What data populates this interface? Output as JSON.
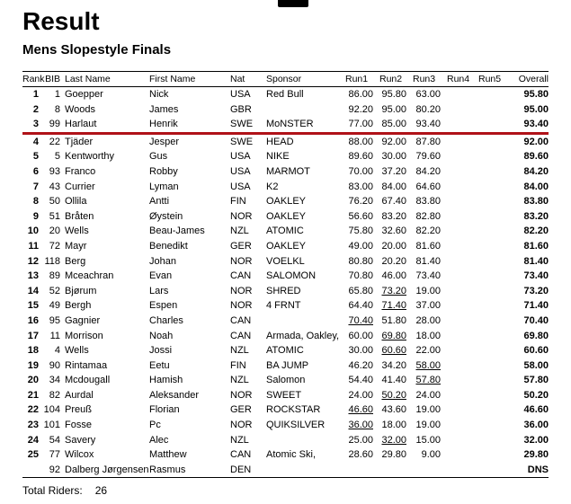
{
  "page": {
    "title": "Result",
    "subtitle": "Mens Slopestyle Finals",
    "footer": {
      "label": "Total Riders:",
      "value": "26"
    }
  },
  "accent": {
    "cut_line_color": "#b01218"
  },
  "table": {
    "columns": [
      "Rank",
      "BIB",
      "Last Name",
      "First Name",
      "Nat",
      "Sponsor",
      "Run1",
      "Run2",
      "Run3",
      "Run4",
      "Run5",
      "Overall"
    ],
    "rows": [
      {
        "rank": "1",
        "bib": "1",
        "last": "Goepper",
        "first": "Nick",
        "nat": "USA",
        "sponsor": "Red Bull",
        "run1": "86.00",
        "run2": "95.80",
        "run3": "63.00",
        "run4": "",
        "run5": "",
        "overall": "95.80"
      },
      {
        "rank": "2",
        "bib": "8",
        "last": "Woods",
        "first": "James",
        "nat": "GBR",
        "sponsor": "",
        "run1": "92.20",
        "run2": "95.00",
        "run3": "80.20",
        "run4": "",
        "run5": "",
        "overall": "95.00"
      },
      {
        "rank": "3",
        "bib": "99",
        "last": "Harlaut",
        "first": "Henrik",
        "nat": "SWE",
        "sponsor": "MoNSTER",
        "run1": "77.00",
        "run2": "85.00",
        "run3": "93.40",
        "run4": "",
        "run5": "",
        "overall": "93.40",
        "cut_after": true
      },
      {
        "rank": "4",
        "bib": "22",
        "last": "Tjäder",
        "first": "Jesper",
        "nat": "SWE",
        "sponsor": "HEAD",
        "run1": "88.00",
        "run2": "92.00",
        "run3": "87.80",
        "run4": "",
        "run5": "",
        "overall": "92.00"
      },
      {
        "rank": "5",
        "bib": "5",
        "last": "Kentworthy",
        "first": "Gus",
        "nat": "USA",
        "sponsor": "NIKE",
        "run1": "89.60",
        "run2": "30.00",
        "run3": "79.60",
        "run4": "",
        "run5": "",
        "overall": "89.60"
      },
      {
        "rank": "6",
        "bib": "93",
        "last": "Franco",
        "first": "Robby",
        "nat": "USA",
        "sponsor": "MARMOT",
        "run1": "70.00",
        "run2": "37.20",
        "run3": "84.20",
        "run4": "",
        "run5": "",
        "overall": "84.20"
      },
      {
        "rank": "7",
        "bib": "43",
        "last": "Currier",
        "first": "Lyman",
        "nat": "USA",
        "sponsor": "K2",
        "run1": "83.00",
        "run2": "84.00",
        "run3": "64.60",
        "run4": "",
        "run5": "",
        "overall": "84.00"
      },
      {
        "rank": "8",
        "bib": "50",
        "last": "Ollila",
        "first": "Antti",
        "nat": "FIN",
        "sponsor": "OAKLEY",
        "run1": "76.20",
        "run2": "67.40",
        "run3": "83.80",
        "run4": "",
        "run5": "",
        "overall": "83.80"
      },
      {
        "rank": "9",
        "bib": "51",
        "last": "Bråten",
        "first": "Øystein",
        "nat": "NOR",
        "sponsor": "OAKLEY",
        "run1": "56.60",
        "run2": "83.20",
        "run3": "82.80",
        "run4": "",
        "run5": "",
        "overall": "83.20"
      },
      {
        "rank": "10",
        "bib": "20",
        "last": "Wells",
        "first": "Beau-James",
        "nat": "NZL",
        "sponsor": "ATOMIC",
        "run1": "75.80",
        "run2": "32.60",
        "run3": "82.20",
        "run4": "",
        "run5": "",
        "overall": "82.20"
      },
      {
        "rank": "11",
        "bib": "72",
        "last": "Mayr",
        "first": "Benedikt",
        "nat": "GER",
        "sponsor": "OAKLEY",
        "run1": "49.00",
        "run2": "20.00",
        "run3": "81.60",
        "run4": "",
        "run5": "",
        "overall": "81.60"
      },
      {
        "rank": "12",
        "bib": "118",
        "last": "Berg",
        "first": "Johan",
        "nat": "NOR",
        "sponsor": "VOELKL",
        "run1": "80.80",
        "run2": "20.20",
        "run3": "81.40",
        "run4": "",
        "run5": "",
        "overall": "81.40"
      },
      {
        "rank": "13",
        "bib": "89",
        "last": "Mceachran",
        "first": "Evan",
        "nat": "CAN",
        "sponsor": "SALOMON",
        "run1": "70.80",
        "run2": "46.00",
        "run3": "73.40",
        "run4": "",
        "run5": "",
        "overall": "73.40"
      },
      {
        "rank": "14",
        "bib": "52",
        "last": "Bjørum",
        "first": "Lars",
        "nat": "NOR",
        "sponsor": "SHRED",
        "run1": "65.80",
        "run2": "73.20",
        "run3": "19.00",
        "run4": "",
        "run5": "",
        "overall": "73.20",
        "underline_run": 2
      },
      {
        "rank": "15",
        "bib": "49",
        "last": "Bergh",
        "first": "Espen",
        "nat": "NOR",
        "sponsor": "4 FRNT",
        "run1": "64.40",
        "run2": "71.40",
        "run3": "37.00",
        "run4": "",
        "run5": "",
        "overall": "71.40",
        "underline_run": 2
      },
      {
        "rank": "16",
        "bib": "95",
        "last": "Gagnier",
        "first": "Charles",
        "nat": "CAN",
        "sponsor": "",
        "run1": "70.40",
        "run2": "51.80",
        "run3": "28.00",
        "run4": "",
        "run5": "",
        "overall": "70.40",
        "underline_run": 1
      },
      {
        "rank": "17",
        "bib": "11",
        "last": "Morrison",
        "first": "Noah",
        "nat": "CAN",
        "sponsor": "Armada, Oakley,",
        "run1": "60.00",
        "run2": "69.80",
        "run3": "18.00",
        "run4": "",
        "run5": "",
        "overall": "69.80",
        "underline_run": 2
      },
      {
        "rank": "18",
        "bib": "4",
        "last": "Wells",
        "first": "Jossi",
        "nat": "NZL",
        "sponsor": "ATOMIC",
        "run1": "30.00",
        "run2": "60.60",
        "run3": "22.00",
        "run4": "",
        "run5": "",
        "overall": "60.60",
        "underline_run": 2
      },
      {
        "rank": "19",
        "bib": "90",
        "last": "Rintamaa",
        "first": "Eetu",
        "nat": "FIN",
        "sponsor": "BA JUMP",
        "run1": "46.20",
        "run2": "34.20",
        "run3": "58.00",
        "run4": "",
        "run5": "",
        "overall": "58.00",
        "underline_run": 3
      },
      {
        "rank": "20",
        "bib": "34",
        "last": "Mcdougall",
        "first": "Hamish",
        "nat": "NZL",
        "sponsor": "Salomon",
        "run1": "54.40",
        "run2": "41.40",
        "run3": "57.80",
        "run4": "",
        "run5": "",
        "overall": "57.80",
        "underline_run": 3
      },
      {
        "rank": "21",
        "bib": "82",
        "last": "Aurdal",
        "first": "Aleksander",
        "nat": "NOR",
        "sponsor": "SWEET",
        "run1": "24.00",
        "run2": "50.20",
        "run3": "24.00",
        "run4": "",
        "run5": "",
        "overall": "50.20",
        "underline_run": 2
      },
      {
        "rank": "22",
        "bib": "104",
        "last": "Preuß",
        "first": "Florian",
        "nat": "GER",
        "sponsor": "ROCKSTAR",
        "run1": "46.60",
        "run2": "43.60",
        "run3": "19.00",
        "run4": "",
        "run5": "",
        "overall": "46.60",
        "underline_run": 1
      },
      {
        "rank": "23",
        "bib": "101",
        "last": "Fosse",
        "first": "Pc",
        "nat": "NOR",
        "sponsor": "QUIKSILVER",
        "run1": "36.00",
        "run2": "18.00",
        "run3": "19.00",
        "run4": "",
        "run5": "",
        "overall": "36.00",
        "underline_run": 1
      },
      {
        "rank": "24",
        "bib": "54",
        "last": "Savery",
        "first": "Alec",
        "nat": "NZL",
        "sponsor": "",
        "run1": "25.00",
        "run2": "32.00",
        "run3": "15.00",
        "run4": "",
        "run5": "",
        "overall": "32.00",
        "underline_run": 2
      },
      {
        "rank": "25",
        "bib": "77",
        "last": "Wilcox",
        "first": "Matthew",
        "nat": "CAN",
        "sponsor": "Atomic Ski,",
        "run1": "28.60",
        "run2": "29.80",
        "run3": "9.00",
        "run4": "",
        "run5": "",
        "overall": "29.80"
      },
      {
        "rank": "",
        "bib": "92",
        "last": "Dalberg Jørgensen",
        "first": "Rasmus",
        "nat": "DEN",
        "sponsor": "",
        "run1": "",
        "run2": "",
        "run3": "",
        "run4": "",
        "run5": "",
        "overall": "DNS"
      }
    ]
  }
}
